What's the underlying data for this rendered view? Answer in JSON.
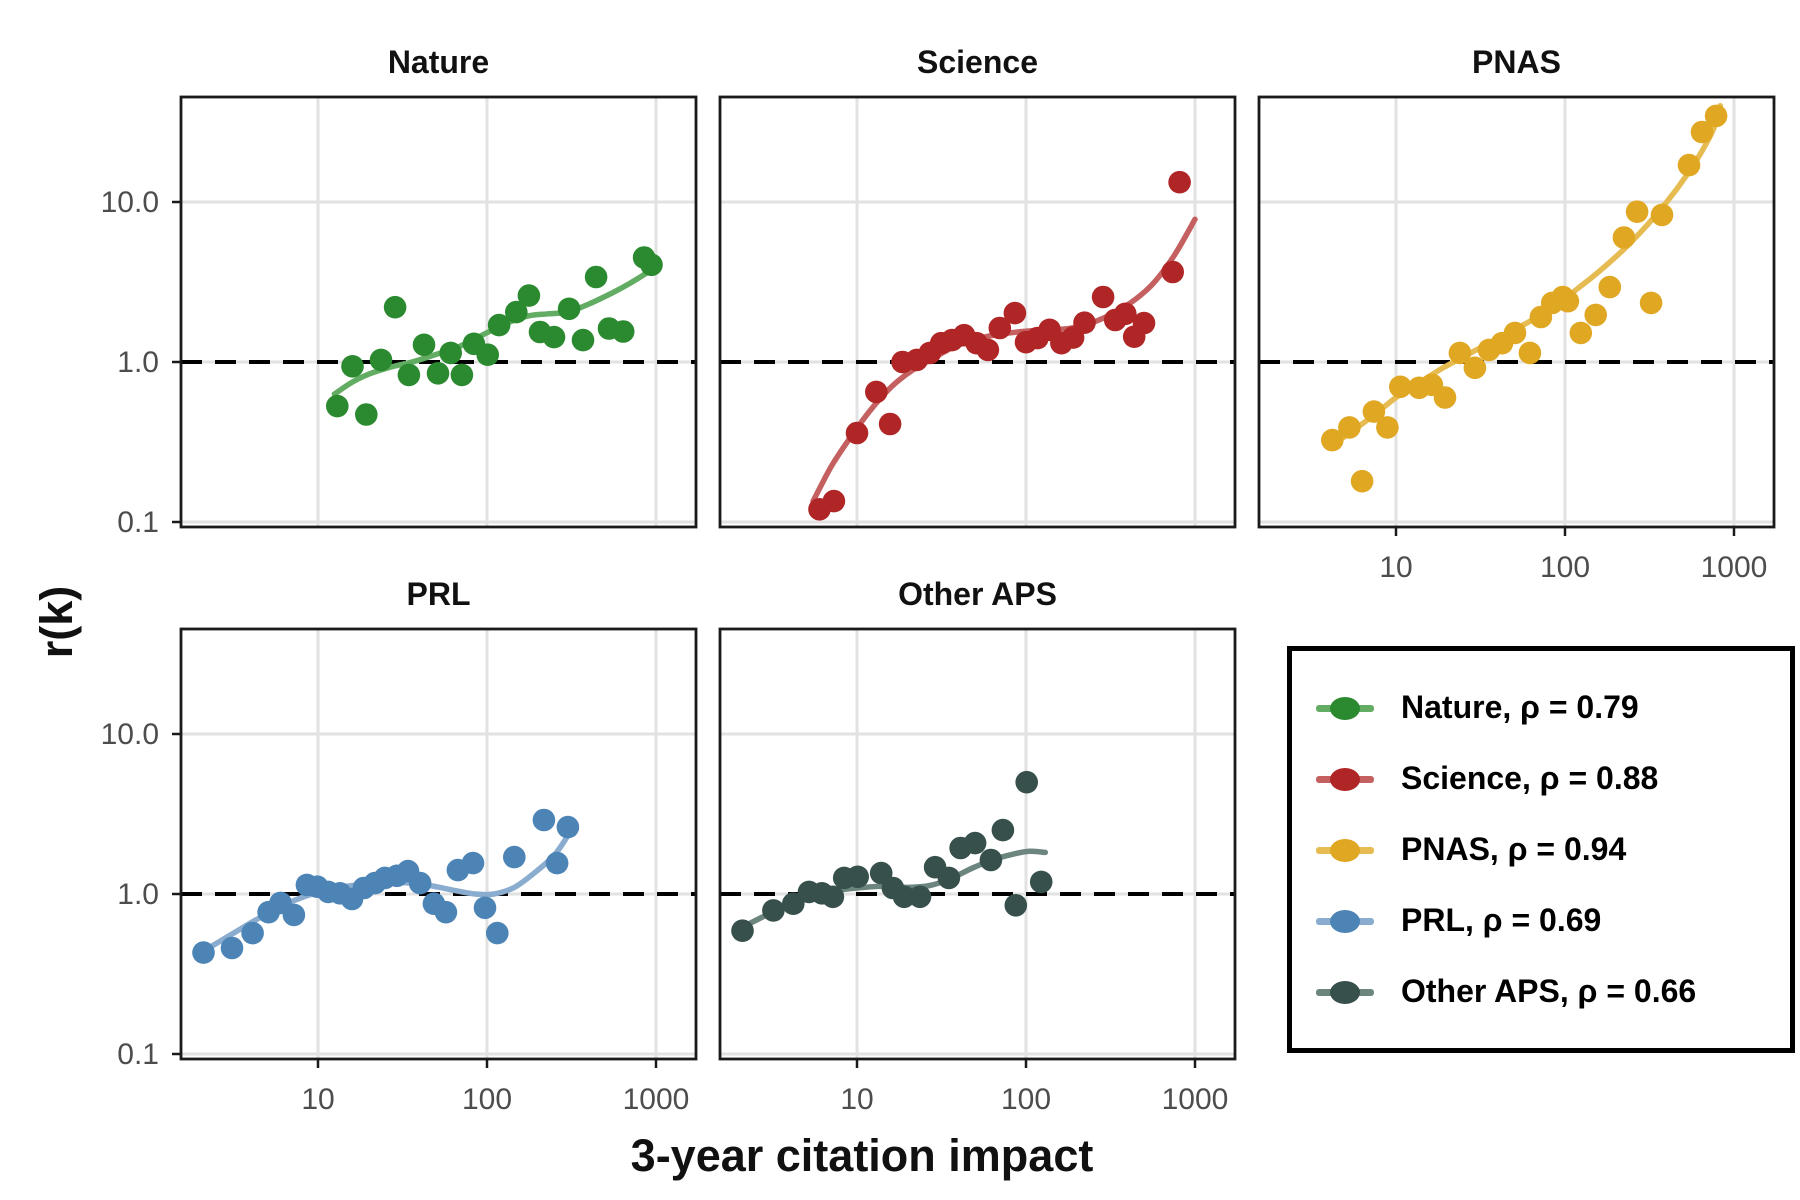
{
  "figure": {
    "ylabel": "r(k)",
    "xlabel": "3-year citation impact",
    "x_tick_labels": [
      "10",
      "100",
      "1000"
    ],
    "y_tick_labels": [
      "10.0",
      "1.0",
      "0.1"
    ],
    "reference_value": 1.0,
    "x_scale": "log",
    "y_scale": "log",
    "xlim": [
      1.55,
      1725
    ],
    "ylim": [
      0.085,
      48
    ],
    "grid": "major",
    "gridline_color": "#e2e2e2",
    "tick_label_color": "#4d4d4d",
    "reference_line_color": "#000000"
  },
  "chart_data": [
    {
      "type": "scatter",
      "title": "Nature",
      "rho": 0.79,
      "color": "#2b8a2f",
      "line_color": "#63ac63",
      "points": [
        [
          13,
          0.53
        ],
        [
          16,
          0.94
        ],
        [
          19.3,
          0.47
        ],
        [
          23.6,
          1.03
        ],
        [
          28.6,
          2.2
        ],
        [
          34.5,
          0.83
        ],
        [
          42.4,
          1.28
        ],
        [
          51.3,
          0.85
        ],
        [
          61,
          1.14
        ],
        [
          71,
          0.83
        ],
        [
          83.7,
          1.3
        ],
        [
          101,
          1.11
        ],
        [
          118,
          1.7
        ],
        [
          149,
          2.05
        ],
        [
          177,
          2.6
        ],
        [
          206,
          1.54
        ],
        [
          249,
          1.43
        ],
        [
          306,
          2.15
        ],
        [
          370,
          1.37
        ],
        [
          442,
          3.4
        ],
        [
          527,
          1.62
        ],
        [
          640,
          1.55
        ],
        [
          850,
          4.5
        ],
        [
          940,
          4.05
        ]
      ],
      "smooth": [
        [
          12.5,
          0.63
        ],
        [
          16,
          0.75
        ],
        [
          20,
          0.84
        ],
        [
          27,
          0.93
        ],
        [
          36,
          1.0
        ],
        [
          48,
          1.1
        ],
        [
          65,
          1.22
        ],
        [
          85,
          1.4
        ],
        [
          110,
          1.6
        ],
        [
          140,
          1.8
        ],
        [
          180,
          1.95
        ],
        [
          230,
          2.0
        ],
        [
          300,
          2.05
        ],
        [
          400,
          2.3
        ],
        [
          550,
          2.7
        ],
        [
          700,
          3.1
        ],
        [
          880,
          3.6
        ]
      ]
    },
    {
      "type": "scatter",
      "title": "Science",
      "rho": 0.88,
      "color": "#b02626",
      "line_color": "#c56060",
      "points": [
        [
          6,
          0.12
        ],
        [
          7.3,
          0.135
        ],
        [
          10,
          0.36
        ],
        [
          13,
          0.65
        ],
        [
          15.7,
          0.41
        ],
        [
          18.6,
          1.0
        ],
        [
          22.6,
          1.03
        ],
        [
          27,
          1.14
        ],
        [
          31.5,
          1.31
        ],
        [
          36.5,
          1.37
        ],
        [
          43,
          1.47
        ],
        [
          51,
          1.31
        ],
        [
          59.5,
          1.19
        ],
        [
          70,
          1.63
        ],
        [
          86,
          2.02
        ],
        [
          100,
          1.33
        ],
        [
          117,
          1.41
        ],
        [
          138,
          1.59
        ],
        [
          162,
          1.31
        ],
        [
          190,
          1.42
        ],
        [
          222,
          1.76
        ],
        [
          286,
          2.55
        ],
        [
          337,
          1.83
        ],
        [
          387,
          2.0
        ],
        [
          437,
          1.44
        ],
        [
          499,
          1.75
        ],
        [
          738,
          3.65
        ],
        [
          811,
          13.3
        ]
      ],
      "smooth": [
        [
          5.5,
          0.135
        ],
        [
          7,
          0.22
        ],
        [
          9,
          0.33
        ],
        [
          12,
          0.5
        ],
        [
          16,
          0.7
        ],
        [
          21,
          0.88
        ],
        [
          28,
          1.05
        ],
        [
          38,
          1.25
        ],
        [
          55,
          1.42
        ],
        [
          80,
          1.52
        ],
        [
          120,
          1.58
        ],
        [
          180,
          1.62
        ],
        [
          260,
          1.8
        ],
        [
          380,
          2.2
        ],
        [
          550,
          3.0
        ],
        [
          750,
          4.6
        ],
        [
          1000,
          7.8
        ]
      ]
    },
    {
      "type": "scatter",
      "title": "PNAS",
      "rho": 0.94,
      "color": "#e0a723",
      "line_color": "#e5bb52",
      "points": [
        [
          4.2,
          0.325
        ],
        [
          5.3,
          0.39
        ],
        [
          6.3,
          0.18
        ],
        [
          7.4,
          0.49
        ],
        [
          8.9,
          0.39
        ],
        [
          10.6,
          0.7
        ],
        [
          13.7,
          0.69
        ],
        [
          16.3,
          0.72
        ],
        [
          19.5,
          0.6
        ],
        [
          23.9,
          1.14
        ],
        [
          29.3,
          0.92
        ],
        [
          35.5,
          1.19
        ],
        [
          42.4,
          1.31
        ],
        [
          50.6,
          1.52
        ],
        [
          62,
          1.14
        ],
        [
          72,
          1.91
        ],
        [
          84,
          2.34
        ],
        [
          97,
          2.55
        ],
        [
          104,
          2.4
        ],
        [
          124,
          1.52
        ],
        [
          152,
          1.97
        ],
        [
          184,
          2.94
        ],
        [
          223,
          6.0
        ],
        [
          267,
          8.7
        ],
        [
          323,
          2.34
        ],
        [
          375,
          8.3
        ],
        [
          542,
          17
        ],
        [
          647,
          27.4
        ],
        [
          784,
          34.5
        ]
      ],
      "smooth": [
        [
          4,
          0.29
        ],
        [
          5.5,
          0.37
        ],
        [
          7.5,
          0.47
        ],
        [
          10,
          0.6
        ],
        [
          14,
          0.75
        ],
        [
          19,
          0.92
        ],
        [
          26,
          1.1
        ],
        [
          35,
          1.3
        ],
        [
          48,
          1.55
        ],
        [
          65,
          1.85
        ],
        [
          90,
          2.3
        ],
        [
          120,
          2.9
        ],
        [
          160,
          3.7
        ],
        [
          220,
          5.0
        ],
        [
          300,
          7.0
        ],
        [
          400,
          10
        ],
        [
          520,
          14.5
        ],
        [
          650,
          21
        ],
        [
          760,
          29
        ],
        [
          830,
          40
        ]
      ]
    },
    {
      "type": "scatter",
      "title": "PRL",
      "rho": 0.69,
      "color": "#4d84b6",
      "line_color": "#89accf",
      "points": [
        [
          2.1,
          0.43
        ],
        [
          3.1,
          0.46
        ],
        [
          4.1,
          0.57
        ],
        [
          5.1,
          0.77
        ],
        [
          6.0,
          0.88
        ],
        [
          7.2,
          0.74
        ],
        [
          8.6,
          1.14
        ],
        [
          9.9,
          1.11
        ],
        [
          11.5,
          1.03
        ],
        [
          13.5,
          1.01
        ],
        [
          15.9,
          0.93
        ],
        [
          18.7,
          1.09
        ],
        [
          21.7,
          1.17
        ],
        [
          24.9,
          1.26
        ],
        [
          29.3,
          1.3
        ],
        [
          34.1,
          1.39
        ],
        [
          40.2,
          1.17
        ],
        [
          48.5,
          0.87
        ],
        [
          57.1,
          0.77
        ],
        [
          67.3,
          1.41
        ],
        [
          82.6,
          1.56
        ],
        [
          97.3,
          0.82
        ],
        [
          115,
          0.57
        ],
        [
          145,
          1.7
        ],
        [
          217,
          2.9
        ],
        [
          260,
          1.56
        ],
        [
          301,
          2.62
        ]
      ],
      "smooth": [
        [
          2.1,
          0.44
        ],
        [
          3,
          0.55
        ],
        [
          4.2,
          0.68
        ],
        [
          5.8,
          0.82
        ],
        [
          8,
          0.95
        ],
        [
          11,
          1.05
        ],
        [
          15,
          1.12
        ],
        [
          20,
          1.16
        ],
        [
          27,
          1.18
        ],
        [
          36,
          1.17
        ],
        [
          48,
          1.12
        ],
        [
          65,
          1.05
        ],
        [
          85,
          1.0
        ],
        [
          110,
          1.0
        ],
        [
          145,
          1.1
        ],
        [
          190,
          1.35
        ],
        [
          250,
          1.75
        ],
        [
          300,
          2.3
        ]
      ]
    },
    {
      "type": "scatter",
      "title": "Other APS",
      "rho": 0.66,
      "color": "#37504c",
      "line_color": "#6c857f",
      "points": [
        [
          2.1,
          0.59
        ],
        [
          3.2,
          0.79
        ],
        [
          4.2,
          0.87
        ],
        [
          5.2,
          1.03
        ],
        [
          6.2,
          1.01
        ],
        [
          7.2,
          0.96
        ],
        [
          8.4,
          1.26
        ],
        [
          10.1,
          1.28
        ],
        [
          13.9,
          1.35
        ],
        [
          16.3,
          1.09
        ],
        [
          19,
          0.96
        ],
        [
          23.6,
          0.96
        ],
        [
          29,
          1.47
        ],
        [
          35,
          1.26
        ],
        [
          41,
          1.94
        ],
        [
          50,
          2.08
        ],
        [
          62,
          1.63
        ],
        [
          73,
          2.51
        ],
        [
          87,
          0.85
        ],
        [
          101,
          5.0
        ],
        [
          123,
          1.19
        ]
      ],
      "smooth": [
        [
          2.1,
          0.62
        ],
        [
          3,
          0.75
        ],
        [
          4.2,
          0.88
        ],
        [
          6,
          0.99
        ],
        [
          8,
          1.06
        ],
        [
          11,
          1.1
        ],
        [
          15,
          1.12
        ],
        [
          20,
          1.1
        ],
        [
          27,
          1.13
        ],
        [
          36,
          1.25
        ],
        [
          48,
          1.45
        ],
        [
          65,
          1.65
        ],
        [
          85,
          1.78
        ],
        [
          105,
          1.85
        ],
        [
          130,
          1.82
        ]
      ]
    }
  ],
  "legend": {
    "entries": [
      {
        "label": "Nature, ρ = 0.79",
        "color": "#2b8a2f",
        "line_color": "#63ac63"
      },
      {
        "label": "Science, ρ = 0.88",
        "color": "#b02626",
        "line_color": "#c56060"
      },
      {
        "label": "PNAS, ρ = 0.94",
        "color": "#e0a723",
        "line_color": "#e5bb52"
      },
      {
        "label": "PRL, ρ = 0.69",
        "color": "#4d84b6",
        "line_color": "#89accf"
      },
      {
        "label": "Other APS, ρ = 0.66",
        "color": "#37504c",
        "line_color": "#6c857f"
      }
    ]
  }
}
